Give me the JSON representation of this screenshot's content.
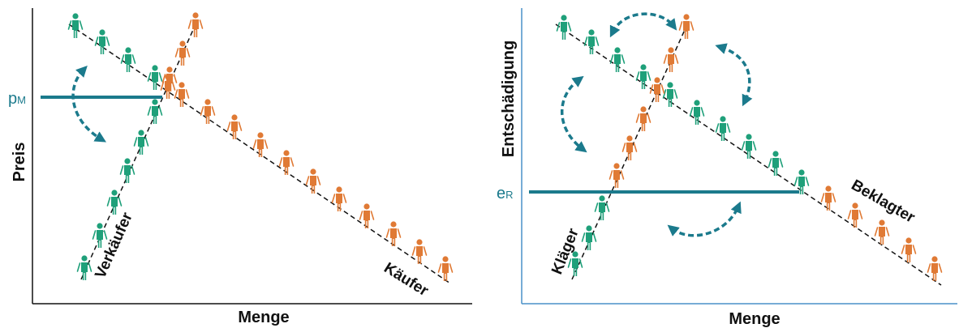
{
  "colors": {
    "seller": "#1fa07a",
    "buyer": "#e07a35",
    "accent": "#1b7a8c",
    "axis_left": "#111111",
    "axis_right": "#4a90c8",
    "curve": "#111111"
  },
  "left": {
    "y_axis_label": "Preis",
    "x_axis_label": "Menge",
    "equilibrium_label_main": "p",
    "equilibrium_label_sub": "M",
    "supply_curve_label": "Verkäufer",
    "demand_curve_label": "Käufer"
  },
  "right": {
    "y_axis_label": "Entschädigung",
    "x_axis_label": "Menge",
    "equilibrium_label_main": "e",
    "equilibrium_label_sub": "R",
    "supply_curve_label": "Kläger",
    "demand_curve_label": "Beklagter"
  },
  "icons": {
    "person": "person-icon",
    "cycle_arrow": "curved-arrow-icon"
  }
}
